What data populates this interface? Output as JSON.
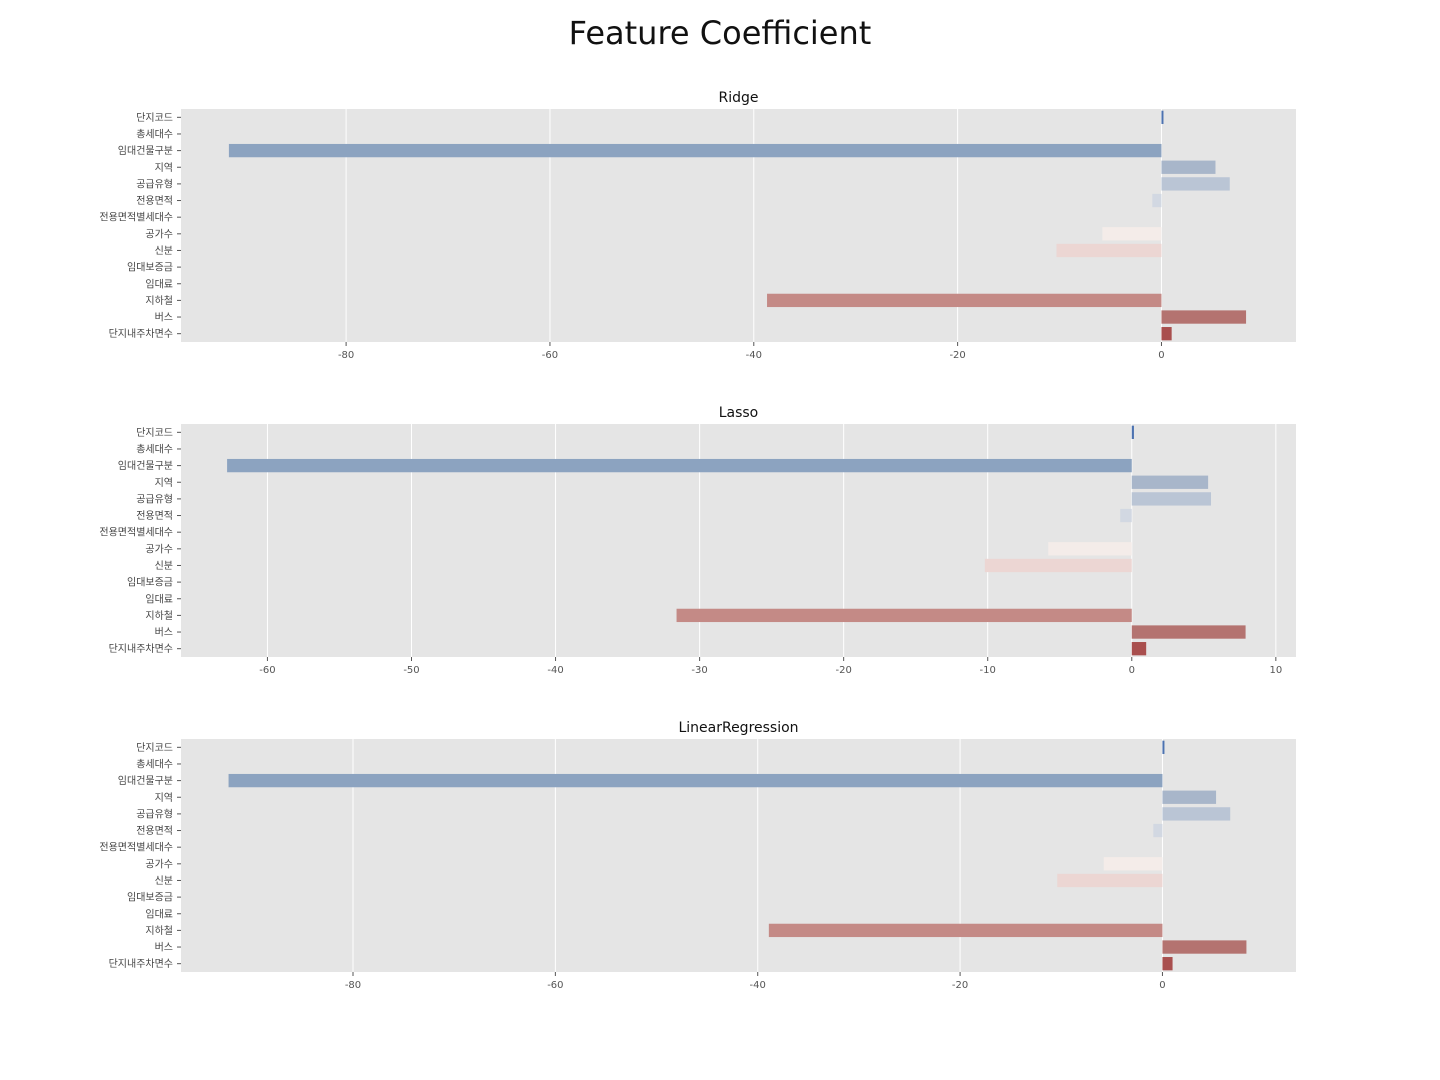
{
  "title": "Feature Coefficient",
  "chart_data": [
    {
      "type": "bar",
      "orientation": "horizontal",
      "title": "Ridge",
      "categories": [
        "단지코드",
        "총세대수",
        "임대건물구분",
        "지역",
        "공급유형",
        "전용면적",
        "전용면적별세대수",
        "공가수",
        "신분",
        "임대보증금",
        "임대료",
        "지하철",
        "버스",
        "단지내주차면수"
      ],
      "values": [
        0.1,
        0.0,
        -91.5,
        5.3,
        6.7,
        -0.9,
        0.0,
        -5.8,
        -10.3,
        0.0,
        0.0,
        -38.7,
        8.3,
        1.0
      ],
      "xlim": [
        -96.2,
        13.2
      ],
      "xticks": [
        -80,
        -60,
        -40,
        -20,
        0
      ],
      "grid": true
    },
    {
      "type": "bar",
      "orientation": "horizontal",
      "title": "Lasso",
      "categories": [
        "단지코드",
        "총세대수",
        "임대건물구분",
        "지역",
        "공급유형",
        "전용면적",
        "전용면적별세대수",
        "공가수",
        "신분",
        "임대보증금",
        "임대료",
        "지하철",
        "버스",
        "단지내주차면수"
      ],
      "values": [
        0.15,
        0.0,
        -62.8,
        5.3,
        5.5,
        -0.8,
        0.0,
        -5.8,
        -10.2,
        0.0,
        0.0,
        -31.6,
        7.9,
        1.0
      ],
      "xlim": [
        -66.0,
        11.4
      ],
      "xticks": [
        -60,
        -50,
        -40,
        -30,
        -20,
        -10,
        0,
        10
      ],
      "grid": true
    },
    {
      "type": "bar",
      "orientation": "horizontal",
      "title": "LinearRegression",
      "categories": [
        "단지코드",
        "총세대수",
        "임대건물구분",
        "지역",
        "공급유형",
        "전용면적",
        "전용면적별세대수",
        "공가수",
        "신분",
        "임대보증금",
        "임대료",
        "지하철",
        "버스",
        "단지내주차면수"
      ],
      "values": [
        0.1,
        0.0,
        -92.3,
        5.3,
        6.7,
        -0.9,
        0.0,
        -5.8,
        -10.4,
        0.0,
        0.0,
        -38.9,
        8.3,
        1.0
      ],
      "xlim": [
        -97.0,
        13.2
      ],
      "xticks": [
        -80,
        -60,
        -40,
        -20,
        0
      ],
      "grid": true
    }
  ],
  "colors": {
    "plot_background": "#e5e5e5",
    "gridline": "#ffffff",
    "bar_palette": [
      "#4c72b0",
      "#7289b0",
      "#8ca3c0",
      "#a8b6ca",
      "#bac5d5",
      "#d2d8e2",
      "#e8eaee",
      "#f4ece9",
      "#ecd6d3",
      "#e2c0bd",
      "#d6a9a5",
      "#c48a86",
      "#b47370",
      "#a94f4e"
    ]
  }
}
